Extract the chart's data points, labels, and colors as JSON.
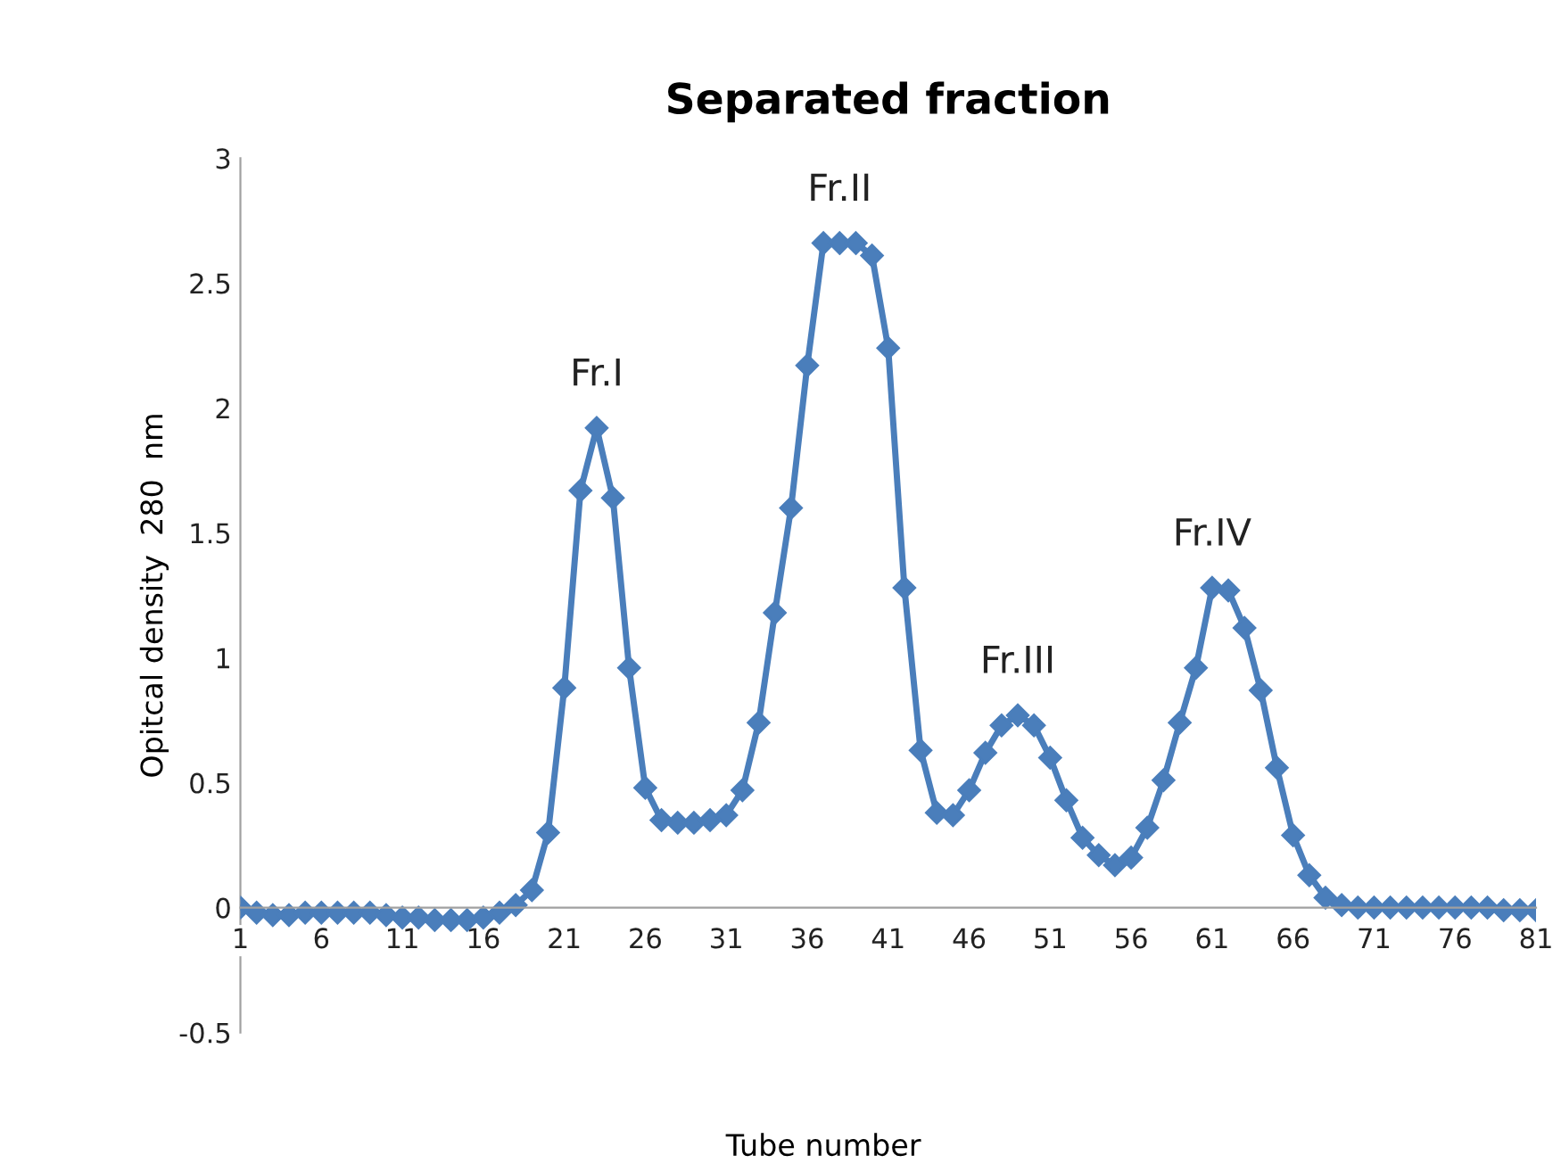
{
  "chart_data": {
    "type": "line",
    "title": "Separated fraction",
    "xlabel": "Tube number",
    "ylabel": "Opitcal density  280  nm",
    "x": [
      1,
      2,
      3,
      4,
      5,
      6,
      7,
      8,
      9,
      10,
      11,
      12,
      13,
      14,
      15,
      16,
      17,
      18,
      19,
      20,
      21,
      22,
      23,
      24,
      25,
      26,
      27,
      28,
      29,
      30,
      31,
      32,
      33,
      34,
      35,
      36,
      37,
      38,
      39,
      40,
      41,
      42,
      43,
      44,
      45,
      46,
      47,
      48,
      49,
      50,
      51,
      52,
      53,
      54,
      55,
      56,
      57,
      58,
      59,
      60,
      61,
      62,
      63,
      64,
      65,
      66,
      67,
      68,
      69,
      70,
      71,
      72,
      73,
      74,
      75,
      76,
      77,
      78,
      79,
      80,
      81
    ],
    "series": [
      {
        "color": "#4a7ebb",
        "values": [
          0.0,
          -0.02,
          -0.03,
          -0.03,
          -0.02,
          -0.02,
          -0.02,
          -0.02,
          -0.02,
          -0.03,
          -0.04,
          -0.04,
          -0.05,
          -0.05,
          -0.05,
          -0.04,
          -0.02,
          0.01,
          0.07,
          0.3,
          0.88,
          1.67,
          1.92,
          1.64,
          0.96,
          0.48,
          0.35,
          0.34,
          0.34,
          0.35,
          0.37,
          0.47,
          0.74,
          1.18,
          1.6,
          2.17,
          2.66,
          2.66,
          2.66,
          2.61,
          2.24,
          1.28,
          0.63,
          0.38,
          0.37,
          0.47,
          0.62,
          0.73,
          0.77,
          0.73,
          0.6,
          0.43,
          0.28,
          0.21,
          0.17,
          0.2,
          0.32,
          0.51,
          0.74,
          0.96,
          1.28,
          1.27,
          1.12,
          0.87,
          0.56,
          0.29,
          0.13,
          0.04,
          0.01,
          0.0,
          0.0,
          0.0,
          0.0,
          0.0,
          0.0,
          0.0,
          0.0,
          0.0,
          -0.01,
          -0.01,
          -0.01
        ]
      }
    ],
    "xlim": [
      1,
      81
    ],
    "xticks": [
      1,
      6,
      11,
      16,
      21,
      26,
      31,
      36,
      41,
      46,
      51,
      56,
      61,
      66,
      71,
      76,
      81
    ],
    "ylim": [
      -0.5,
      3
    ],
    "yticks": [
      -0.5,
      0,
      0.5,
      1,
      1.5,
      2,
      2.5,
      3
    ],
    "marker": "diamond",
    "line_style": "solid",
    "grid": false,
    "annotations": [
      {
        "text": "Fr.I",
        "x": 23,
        "y": 1.92
      },
      {
        "text": "Fr.II",
        "x": 38,
        "y": 2.66
      },
      {
        "text": "Fr.III",
        "x": 49,
        "y": 0.77
      },
      {
        "text": "Fr.IV",
        "x": 61,
        "y": 1.28
      }
    ]
  }
}
